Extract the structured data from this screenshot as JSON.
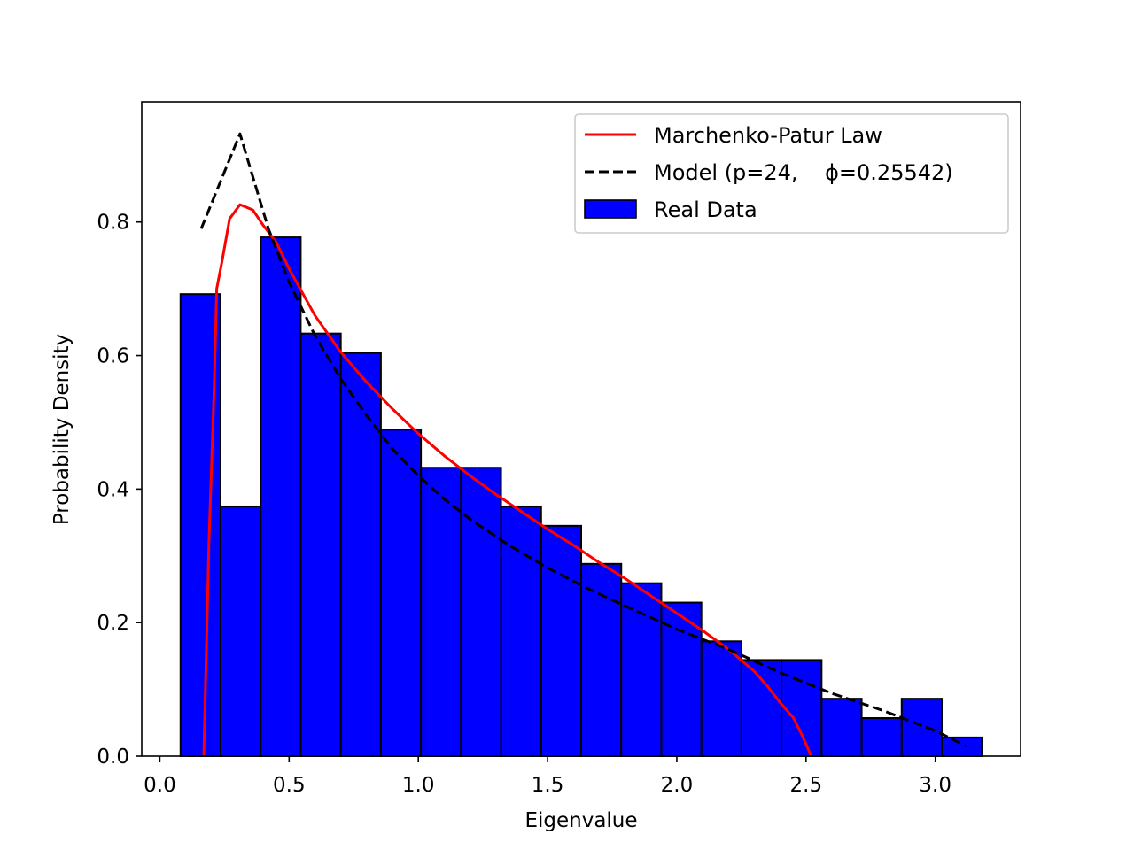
{
  "chart_data": {
    "type": "bar",
    "title": "",
    "xlabel": "Eigenvalue",
    "ylabel": "Probability Density",
    "xlim": [
      -0.07,
      3.33
    ],
    "ylim": [
      0.0,
      0.98
    ],
    "x_ticks": [
      0.0,
      0.5,
      1.0,
      1.5,
      2.0,
      2.5,
      3.0
    ],
    "x_tick_labels": [
      "0.0",
      "0.5",
      "1.0",
      "1.5",
      "2.0",
      "2.5",
      "3.0"
    ],
    "y_ticks": [
      0.0,
      0.2,
      0.4,
      0.6,
      0.8
    ],
    "y_tick_labels": [
      "0.0",
      "0.2",
      "0.4",
      "0.6",
      "0.8"
    ],
    "grid": false,
    "legend_position": "top-right",
    "histogram": {
      "name": "Real Data",
      "color": "#0000ff",
      "edge_color": "#000000",
      "bin_edges": [
        0.08,
        0.235,
        0.39,
        0.545,
        0.7,
        0.855,
        1.01,
        1.165,
        1.32,
        1.475,
        1.63,
        1.785,
        1.94,
        2.095,
        2.25,
        2.405,
        2.56,
        2.715,
        2.87,
        3.025,
        3.18
      ],
      "values": [
        0.692,
        0.374,
        0.777,
        0.633,
        0.604,
        0.489,
        0.432,
        0.432,
        0.374,
        0.345,
        0.288,
        0.259,
        0.23,
        0.172,
        0.144,
        0.144,
        0.086,
        0.057,
        0.086,
        0.028
      ]
    },
    "series": [
      {
        "name": "Marchenko-Patur Law",
        "style": "solid",
        "color": "#ff0000",
        "x": [
          0.17,
          0.19,
          0.21,
          0.22,
          0.24,
          0.27,
          0.31,
          0.36,
          0.4,
          0.45,
          0.5,
          0.6,
          0.7,
          0.8,
          0.9,
          1.0,
          1.1,
          1.2,
          1.3,
          1.4,
          1.5,
          1.6,
          1.7,
          1.8,
          1.9,
          2.0,
          2.1,
          2.2,
          2.3,
          2.35,
          2.4,
          2.45,
          2.48,
          2.5,
          2.52
        ],
        "y": [
          0.0,
          0.32,
          0.55,
          0.7,
          0.74,
          0.805,
          0.826,
          0.818,
          0.795,
          0.77,
          0.73,
          0.66,
          0.605,
          0.56,
          0.52,
          0.483,
          0.45,
          0.42,
          0.392,
          0.366,
          0.34,
          0.316,
          0.29,
          0.266,
          0.24,
          0.214,
          0.188,
          0.16,
          0.127,
          0.105,
          0.08,
          0.058,
          0.035,
          0.018,
          0.0
        ]
      },
      {
        "name": "Model (p=24,    ϕ=0.25542)",
        "style": "dashed",
        "color": "#000000",
        "x": [
          0.16,
          0.31,
          0.42,
          0.5,
          0.6,
          0.7,
          0.8,
          0.9,
          1.0,
          1.1,
          1.2,
          1.35,
          1.5,
          1.65,
          1.8,
          2.0,
          2.2,
          2.4,
          2.6,
          2.8,
          3.0,
          3.12
        ],
        "y": [
          0.79,
          0.932,
          0.79,
          0.71,
          0.63,
          0.565,
          0.51,
          0.46,
          0.42,
          0.385,
          0.355,
          0.316,
          0.282,
          0.252,
          0.225,
          0.19,
          0.16,
          0.125,
          0.094,
          0.068,
          0.038,
          0.015
        ]
      }
    ]
  }
}
